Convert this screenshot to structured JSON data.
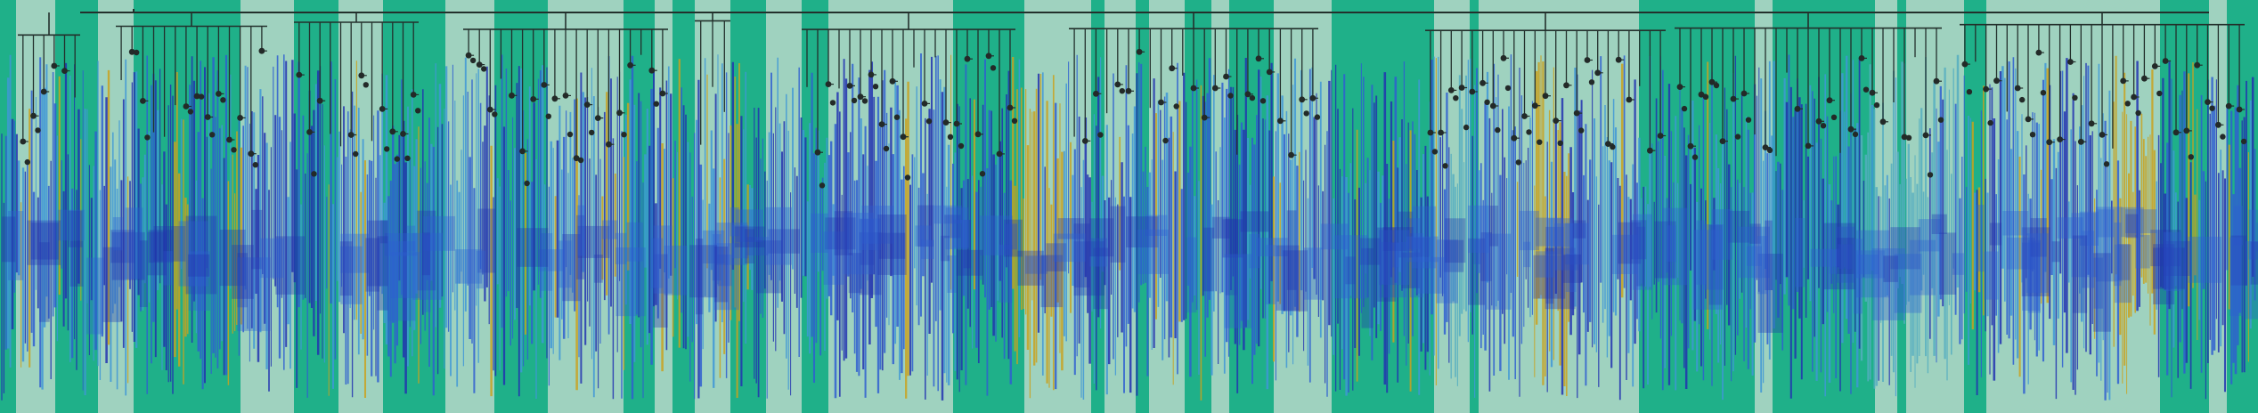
{
  "figure": {
    "kind": "phylogenetic tree with colored clade bands",
    "colors": {
      "background_light": "#9fd2bf",
      "band_dark": "#1fb089",
      "branch_internal": "#23302c",
      "node_marker": "#232a28",
      "leaf_dark_blue": "#2233b0",
      "leaf_mid_blue": "#2f5fd0",
      "leaf_light_blue": "#3f98d6",
      "leaf_gold": "#c9a21e",
      "leaf_teal": "#55aec0"
    },
    "text": []
  }
}
